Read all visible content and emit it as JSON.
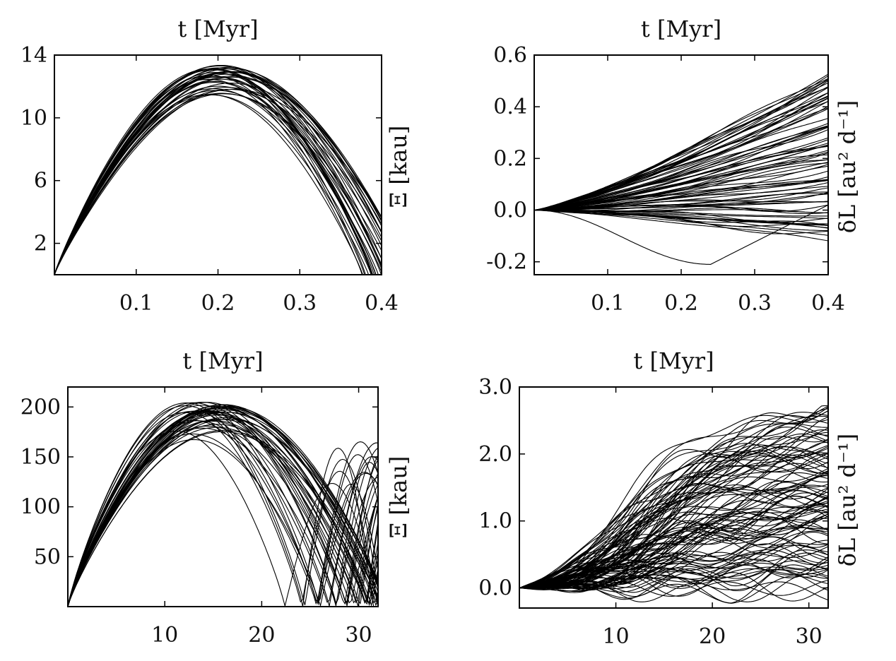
{
  "chart_data": [
    {
      "type": "line",
      "title": "",
      "xlabel": "t [Myr]",
      "ylabel": "Ξ [kau]",
      "xlim": [
        0,
        0.4
      ],
      "ylim": [
        0,
        14
      ],
      "xticks": [
        0.1,
        0.2,
        0.3,
        0.4
      ],
      "xtick_labels": [
        "0.1",
        "0.2",
        "0.3",
        "0.4"
      ],
      "yticks": [
        2,
        6,
        10,
        14
      ],
      "ytick_labels": [
        "2",
        "6",
        "10",
        "14"
      ],
      "grid": false,
      "legend": "none",
      "family": {
        "kind": "arc",
        "count": 38,
        "t_end_range": [
          0.375,
          0.445
        ],
        "peak_range": [
          11.3,
          13.4
        ],
        "peak_time_ratio": 0.5
      }
    },
    {
      "type": "line",
      "title": "",
      "xlabel": "t [Myr]",
      "ylabel": "δL [au² d⁻¹]",
      "xlim": [
        0,
        0.4
      ],
      "ylim": [
        -0.25,
        0.6
      ],
      "xticks": [
        0.1,
        0.2,
        0.3,
        0.4
      ],
      "xtick_labels": [
        "0.1",
        "0.2",
        "0.3",
        "0.4"
      ],
      "yticks": [
        -0.2,
        0.0,
        0.2,
        0.4,
        0.6
      ],
      "ytick_labels": [
        "-0.2",
        "0.0",
        "0.2",
        "0.4",
        "0.6"
      ],
      "grid": false,
      "legend": "none",
      "family": {
        "kind": "fan",
        "count": 80,
        "end_range": [
          -0.12,
          0.53
        ],
        "dip_min": -0.21,
        "dip_time": 0.24
      }
    },
    {
      "type": "line",
      "title": "",
      "xlabel": "t [Myr]",
      "ylabel": "Ξ [kau]",
      "xlim": [
        0,
        32
      ],
      "ylim": [
        0,
        220
      ],
      "xticks": [
        10,
        20,
        30
      ],
      "xtick_labels": [
        "10",
        "20",
        "30"
      ],
      "yticks": [
        50,
        100,
        150,
        200
      ],
      "ytick_labels": [
        "50",
        "100",
        "150",
        "200"
      ],
      "grid": false,
      "legend": "none",
      "family": {
        "kind": "arc-rebound",
        "count": 44,
        "t_end_range": [
          21,
          33
        ],
        "peak_range": [
          163,
          205
        ],
        "rebound_peak_range": [
          120,
          168
        ],
        "rebound_period": 8.4
      }
    },
    {
      "type": "line",
      "title": "",
      "xlabel": "t [Myr]",
      "ylabel": "δL [au² d⁻¹]",
      "xlim": [
        0,
        32
      ],
      "ylim": [
        -0.3,
        3.0
      ],
      "xticks": [
        10,
        20,
        30
      ],
      "xtick_labels": [
        "10",
        "20",
        "30"
      ],
      "yticks": [
        0.0,
        1.0,
        2.0,
        3.0
      ],
      "ytick_labels": [
        "0.0",
        "1.0",
        "2.0",
        "3.0"
      ],
      "grid": false,
      "legend": "none",
      "family": {
        "kind": "s-curve",
        "count": 110,
        "plateau_range": [
          -0.15,
          2.55
        ],
        "final_max": 2.72,
        "rise_center": 13
      }
    }
  ]
}
